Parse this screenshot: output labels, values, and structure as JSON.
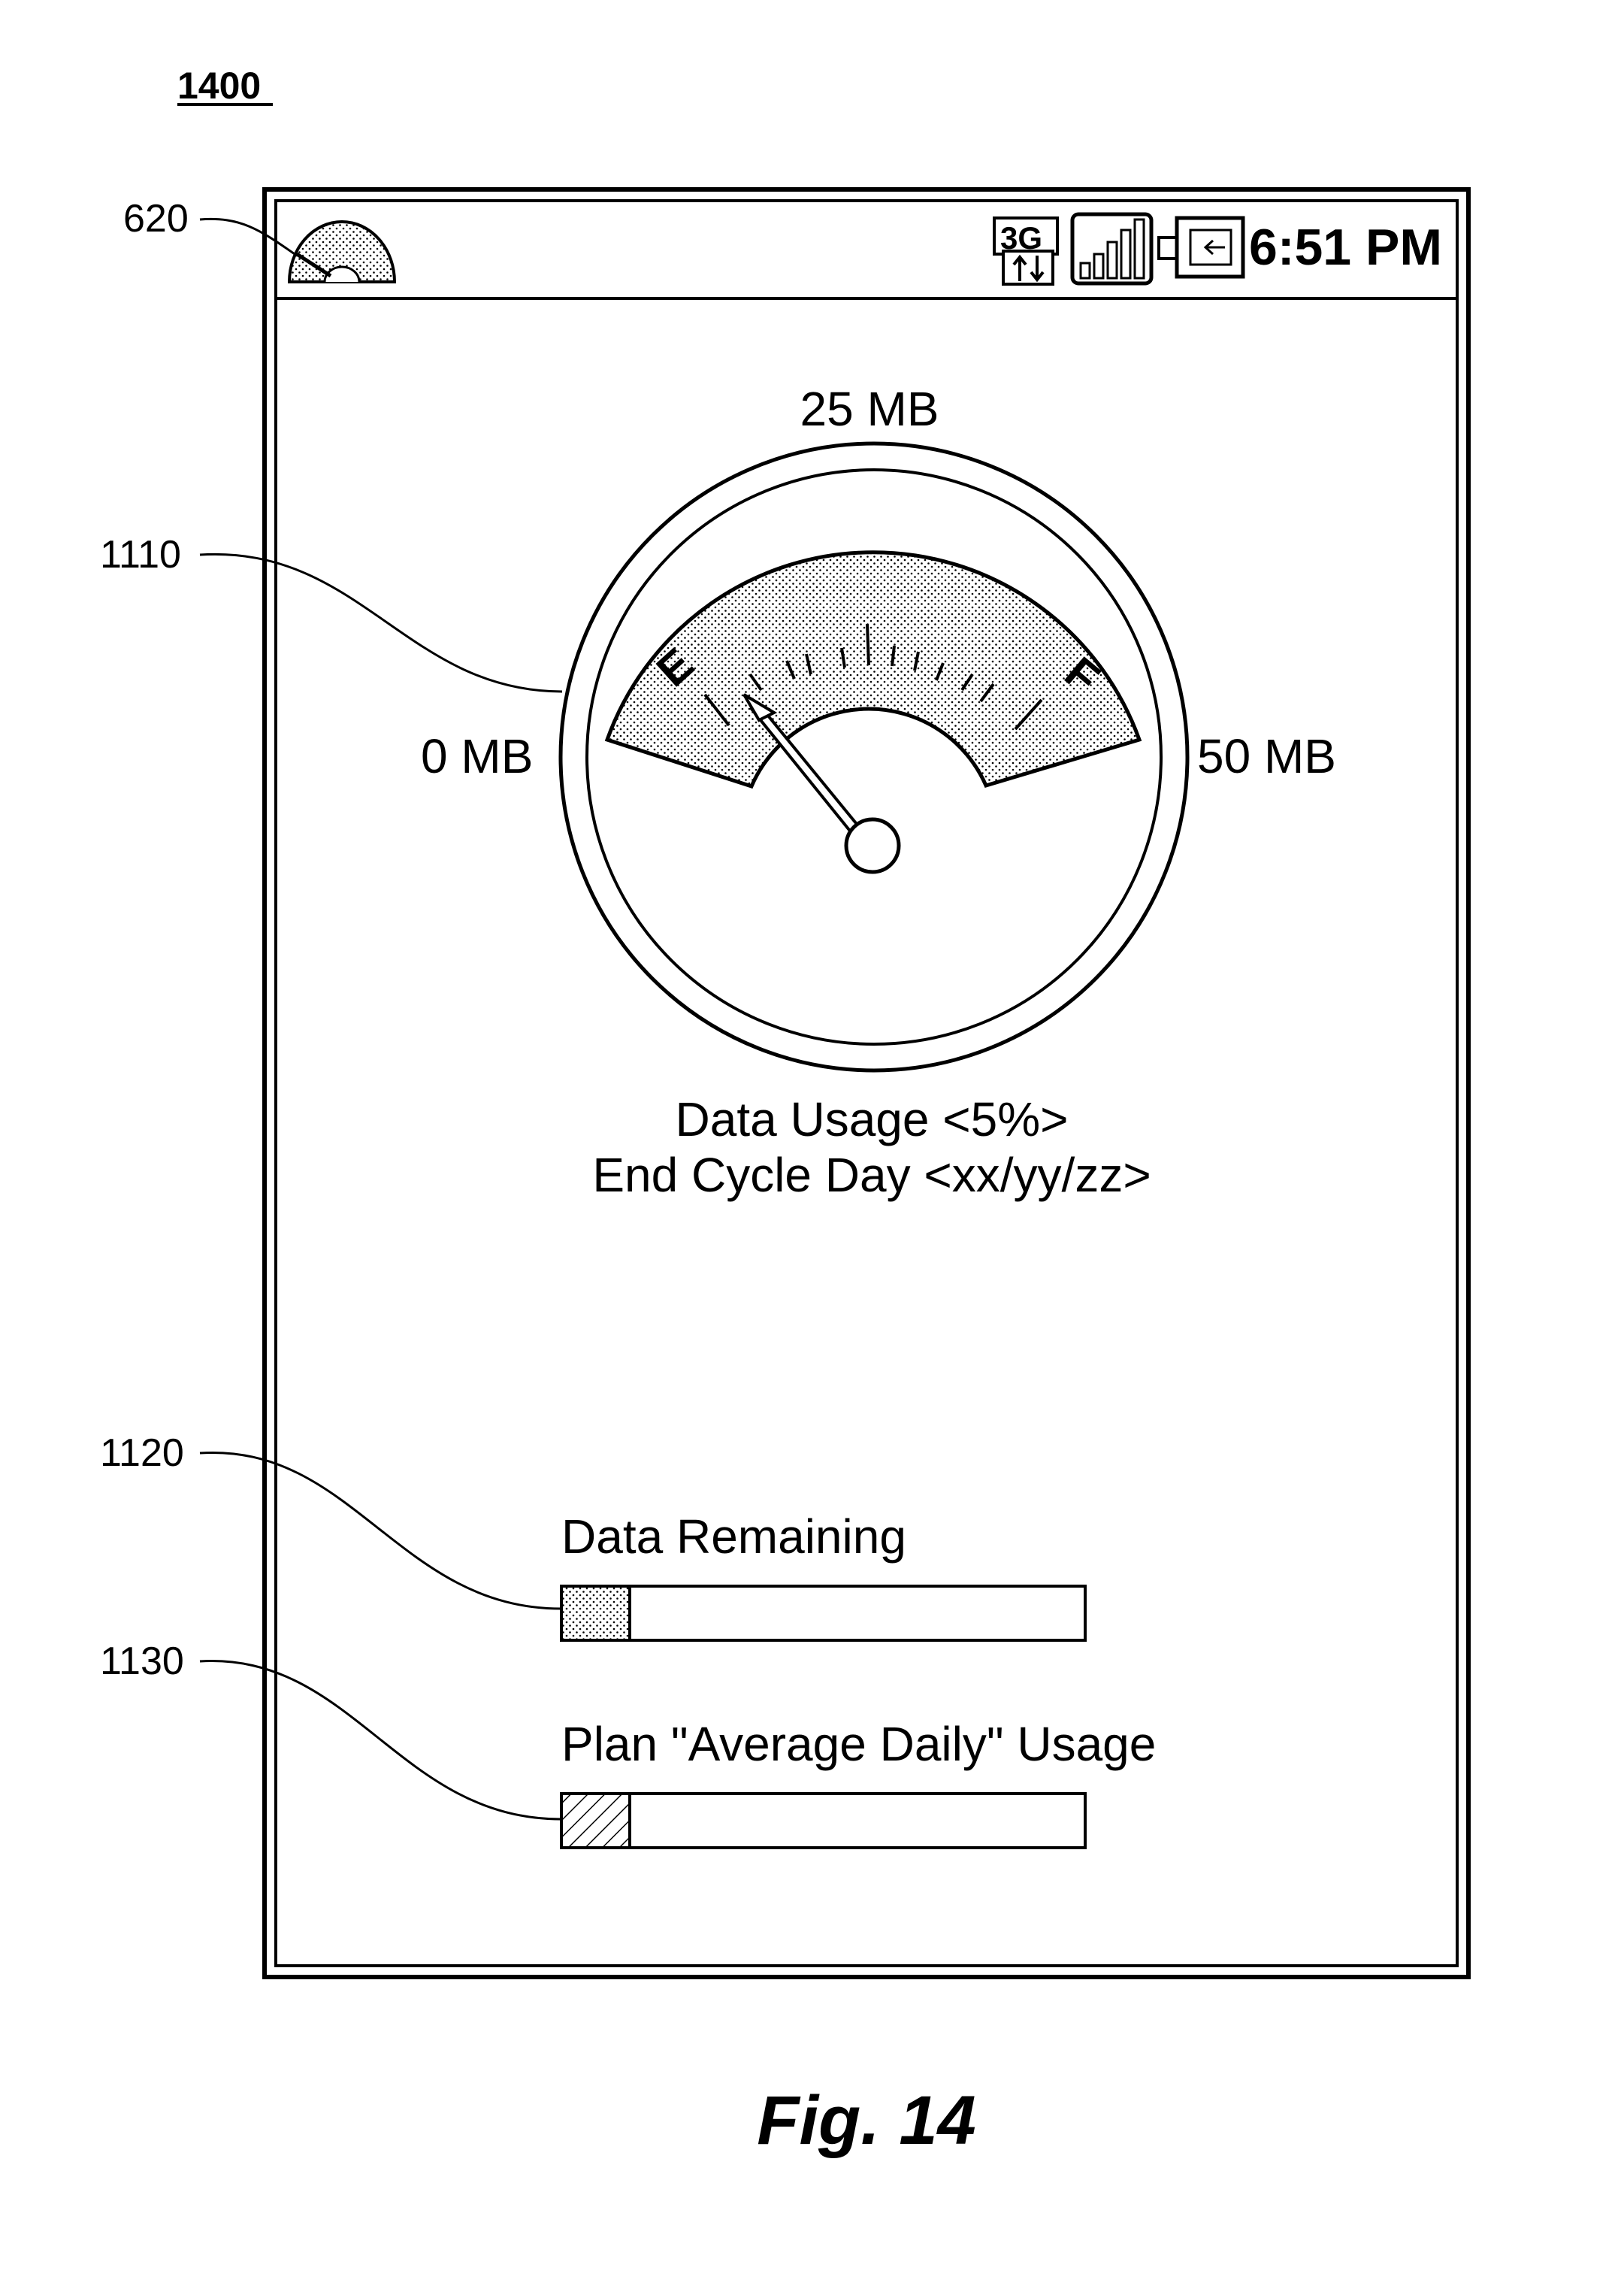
{
  "figure": {
    "number_label": "1400",
    "caption": "Fig. 14"
  },
  "reference_labels": {
    "status_icon": "620",
    "gauge": "1110",
    "data_remaining_bar": "1120",
    "average_daily_bar": "1130"
  },
  "status_bar": {
    "network_type": "3G",
    "time": "6:51 PM",
    "icons": [
      "data-gauge-icon",
      "network-3g-icon",
      "signal-strength-icon",
      "battery-icon"
    ]
  },
  "gauge": {
    "top_label": "25 MB",
    "left_label": "0 MB",
    "right_label": "50 MB",
    "empty_mark": "E",
    "full_mark": "F",
    "needle_level": 0.05
  },
  "usage_info": {
    "data_usage": "Data Usage <5%>",
    "end_cycle": "End Cycle Day <xx/yy/zz>"
  },
  "bars": [
    {
      "label": "Data Remaining",
      "fill_fraction": 0.13,
      "pattern": "dotted"
    },
    {
      "label": "Plan \"Average Daily\" Usage",
      "fill_fraction": 0.13,
      "pattern": "hatched"
    }
  ]
}
